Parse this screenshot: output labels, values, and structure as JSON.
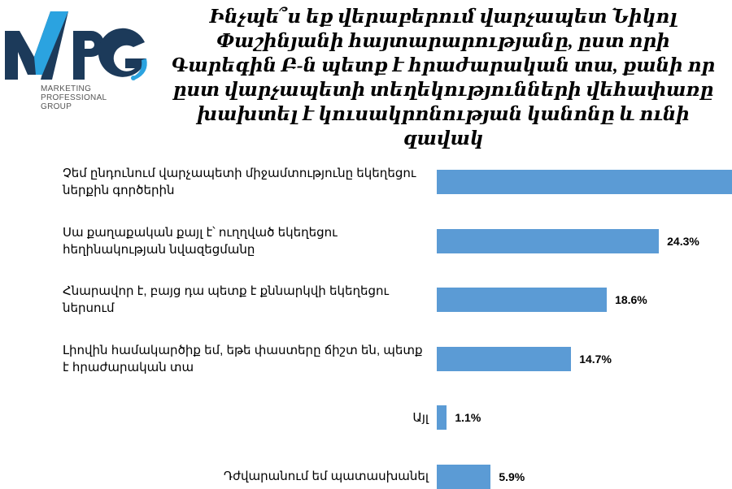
{
  "logo": {
    "brand": "MPG",
    "line1": "MARKETING",
    "line2": "PROFESSIONAL",
    "line3": "GROUP",
    "colors": {
      "dark": "#1c3a5a",
      "cyan": "#2ba3e0"
    }
  },
  "title": "Ինչպե՞ս եք վերաբերում վարչապետ Նիկոլ Փաշինյանի հայտարարությանը, ըստ որի Գարեգին Բ-ն պետք է հրաժարական տա, քանի որ ըստ վարչապետի տեղեկությունների վեհափառը խախտել է կուսակրոնության կանոնը և ունի զավակ",
  "chart_data": {
    "type": "bar",
    "orientation": "horizontal",
    "bar_color": "#5b9bd5",
    "categories": [
      "Չեմ ընդունում վարչապետի միջամտությունը եկեղեցու ներքին գործերին",
      "Սա քաղաքական քայլ է՝ ուղղված եկեղեցու հեղինակության նվազեցմանը",
      "Հնարավոր է, բայց դա պետք է քննարկվի եկեղեցու ներսում",
      "Լիովին համակարծիք եմ, եթե փաստերը ճիշտ են, պետք է հրաժարական տա",
      "Այլ",
      "Դժվարանում եմ պատասխանել"
    ],
    "values": [
      null,
      24.3,
      18.6,
      14.7,
      1.1,
      5.9
    ],
    "value_labels": [
      "",
      "24.3%",
      "18.6%",
      "14.7%",
      "1.1%",
      "5.9%"
    ],
    "notes": "Value labels of the first bar are cropped in the source image"
  }
}
